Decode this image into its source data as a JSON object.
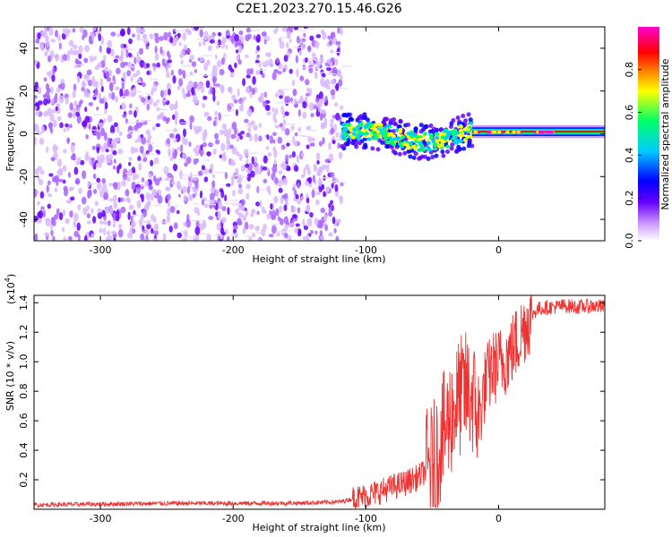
{
  "title": "C2E1.2023.270.15.46.G26",
  "colors": {
    "snr_line": "#ee3333",
    "spectrogram_scale": [
      "#ffffff",
      "#cc99ff",
      "#6600ff",
      "#0000ff",
      "#00ccff",
      "#00ff66",
      "#ffff00",
      "#ff7700",
      "#ff0000",
      "#ff00cc"
    ]
  },
  "chart_data": [
    {
      "type": "heatmap",
      "name": "spectrogram",
      "xlabel": "Height of straight line (km)",
      "ylabel": "Frequency (Hz)",
      "xlim": [
        -350,
        80
      ],
      "ylim": [
        -50,
        50
      ],
      "xticks": [
        -300,
        -200,
        -100,
        0
      ],
      "yticks": [
        -40,
        -20,
        0,
        20,
        40
      ],
      "colorbar": {
        "label": "Normalized spectral amplitude",
        "range": [
          0,
          1
        ],
        "ticks": [
          "0.0",
          "0.2",
          "0.4",
          "0.6",
          "0.8"
        ],
        "tick_values": [
          0,
          0.2,
          0.4,
          0.6,
          0.8
        ]
      },
      "regions": [
        {
          "x_range": [
            -350,
            -118
          ],
          "freq_range": [
            -50,
            50
          ],
          "amplitude": 0.12,
          "pattern": "broadband noise"
        },
        {
          "x_range": [
            -118,
            -20
          ],
          "freq_range": [
            -10,
            12
          ],
          "amplitude": 0.55,
          "pattern": "signal emerging"
        },
        {
          "x_range": [
            -20,
            80
          ],
          "freq_range": [
            -1,
            3
          ],
          "amplitude": 0.95,
          "pattern": "narrow carrier at ~1 Hz"
        }
      ],
      "carrier_band_hz": 1
    },
    {
      "type": "line",
      "name": "snr",
      "xlabel": "Height of straight line (km)",
      "ylabel": "SNR (10 * v/v)",
      "multiplier_label": "(x10",
      "multiplier_exp": "4",
      "multiplier_close": ")",
      "xlim": [
        -350,
        80
      ],
      "ylim": [
        0,
        14500
      ],
      "xticks": [
        -300,
        -200,
        -100,
        0
      ],
      "yticks": [
        2000,
        4000,
        6000,
        8000,
        10000,
        12000,
        14000
      ],
      "ytick_labels": [
        "0.2",
        "0.4",
        "0.6",
        "0.8",
        "1.0",
        "1.2",
        "1.4"
      ],
      "series": [
        {
          "x": [
            -350,
            -300,
            -250,
            -200,
            -150,
            -120,
            -100,
            -90,
            -80,
            -70,
            -60,
            -50,
            -45,
            -40,
            -35,
            -30,
            -25,
            -20,
            -15,
            -10,
            -5,
            0,
            5,
            10,
            15,
            20,
            25,
            30,
            40,
            50,
            60,
            70,
            80
          ],
          "y": [
            300,
            350,
            400,
            400,
            420,
            500,
            900,
            1200,
            1500,
            1800,
            2200,
            3000,
            4200,
            5500,
            6500,
            7500,
            8000,
            7800,
            6000,
            8500,
            9500,
            9800,
            10200,
            10800,
            11500,
            12500,
            13200,
            13600,
            13700,
            13800,
            13700,
            13800,
            13700
          ]
        }
      ]
    }
  ]
}
